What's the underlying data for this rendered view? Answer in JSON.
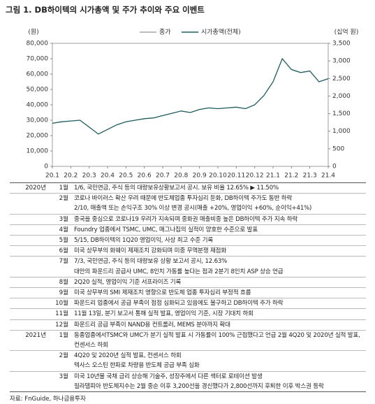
{
  "title": "그림 1. DB하이텍의 시가총액 및 주가 추이와 주요 이벤트",
  "chart_data": {
    "type": "line",
    "y_label": "(원)",
    "y2_label": "(십억 원)",
    "categories": [
      "20.1",
      null,
      "20.2",
      null,
      "20.3",
      null,
      "20.4",
      null,
      "20.5",
      null,
      "20.6",
      null,
      "20.7",
      null,
      "20.8",
      null,
      "20.9",
      null,
      "20.10",
      null,
      "20.11",
      null,
      "20.12",
      null,
      "21.1",
      null,
      "21.2",
      null,
      "21.3",
      null,
      "21.4"
    ],
    "series": [
      {
        "name": "종가",
        "color": "#a6a6a6",
        "values": [
          28000,
          29000,
          29500,
          30000,
          25500,
          21000,
          24000,
          27000,
          29000,
          30000,
          31000,
          31500,
          33000,
          34500,
          36000,
          35000,
          37000,
          38000,
          37500,
          38000,
          38500,
          37500,
          40000,
          46000,
          55000,
          70000,
          63000,
          61000,
          62000,
          55000,
          57000
        ]
      },
      {
        "name": "시가총액(전체)",
        "color": "#1f5f5f",
        "axis": "y2",
        "values": [
          1225,
          1269,
          1291,
          1313,
          1116,
          919,
          1050,
          1181,
          1269,
          1313,
          1356,
          1378,
          1444,
          1509,
          1575,
          1531,
          1619,
          1663,
          1641,
          1663,
          1684,
          1641,
          1750,
          2013,
          2406,
          3063,
          2756,
          2669,
          2713,
          2406,
          2494
        ]
      }
    ],
    "ylim": [
      0,
      80000
    ],
    "yticks": [
      0,
      {
        "value": 10000,
        "label": "10,000"
      },
      {
        "value": 20000,
        "label": "20,000"
      },
      {
        "value": 30000,
        "label": "30,000"
      },
      {
        "value": 40000,
        "label": "40,000"
      },
      {
        "value": 50000,
        "label": "50,000"
      },
      {
        "value": 60000,
        "label": "60,000"
      },
      {
        "value": 70000,
        "label": "70,000"
      },
      {
        "value": 80000,
        "label": "80,000"
      }
    ],
    "y2lim": [
      0,
      3500
    ],
    "y2ticks": [
      0,
      500,
      {
        "value": 1000,
        "label": "1,000"
      },
      {
        "value": 1500,
        "label": "1,500"
      },
      {
        "value": 2000,
        "label": "2,000"
      },
      {
        "value": 2500,
        "label": "2,500"
      },
      {
        "value": 3000,
        "label": "3,000"
      },
      {
        "value": 3500,
        "label": "3,500"
      }
    ],
    "grid": false,
    "legend": "top"
  },
  "table": {
    "rows": [
      {
        "year": "2020년",
        "month": "1월",
        "text": "1/6, 국민연금, 주식 등의 대량보유상황보고서 공시. 보유 비율 12.65% ▶ 11.50%"
      },
      {
        "month": "2월",
        "text": "코로나 바이러스 확산 우려 때문에 반도체업종 투자심리 둔화, DB하이텍 주가도 동반 하락"
      },
      {
        "text": "2/10, 매출액 또는 손익구조 30% 이상 변경 공시(매출 +20%, 영업이익 +60%, 순이익+41%)"
      },
      {
        "month": "3월",
        "text": "중국을 중심으로 코로나19 우려가 지속되며 중화권 매출비중 높은 DB하이텍 주가 지속 하락"
      },
      {
        "month": "4월",
        "text": "Foundry 업종에서 TSMC, UMC, 매그나칩의 실적이 양호한 수준으로 발표"
      },
      {
        "month": "5월",
        "text": "5/15, DB하이텍의 1Q20 영업이익, 사상 최고 수준 기록"
      },
      {
        "month": "6월",
        "text": "미국 상무부의 화웨이 제재조치 강화되며 미중 무역분쟁 재점화"
      },
      {
        "month": "7월",
        "text": "7/3, 국민연금, 주식 등의 대량보유 상황 보고서 공시, 12.63%"
      },
      {
        "text": "대만의 파운드리 공급사 UMC, 8인치 가동률 높다는 점과 2분기 8인치 ASP 상승 언급"
      },
      {
        "month": "8월",
        "text": "2Q20 실적, 영업이익 기준 서프라이즈 기록"
      },
      {
        "month": "9월",
        "text": "미국 상무부의 SMI 제재조치 영향으로 반도체 업종 투자심리 부정적 흐름"
      },
      {
        "month": "10월",
        "text": "파운드리 업종에서 공급 부족이 점점 심화되고 있음에도 불구하고 DB하이텍 주가 하락"
      },
      {
        "month": "11월",
        "text": "11월 13일, 분기 보고서 통해 실적 발표, 영업이익 기준, 시장 기대치 하회"
      },
      {
        "month": "12월",
        "text": "파운드리 공급 부족이 NAND용 컨트롤러, MEMS 분야까지 확대"
      },
      {
        "year": "2021년",
        "month": "1월",
        "text": "동종업종에서TSMC와 UMC가 분기 실적 발표 시 가동률이 100% 근접했다고 언급 2월 4Q20 및 2020년 실적 발표, 컨센서스 하회"
      },
      {
        "month": "2월",
        "text": "4Q20 및 2020년 실적 발표, 컨센서스 하회"
      },
      {
        "text": "텍사스 오스틴 한파로 차량용 반도체 공급 부족 심화"
      },
      {
        "month": "3월",
        "text": "미국 10년물 국채 금리 상승해 기술주, 성장주에서 다른 섹터로 로테이션 발생"
      },
      {
        "text": "필라델피아 반도체지수는 2월 중순 이후 3,200선을 경신했다가 2,800선까지 후퇴한 이후 박스권 등락"
      }
    ]
  },
  "source": "자료: FnGuide, 하나금융투자"
}
